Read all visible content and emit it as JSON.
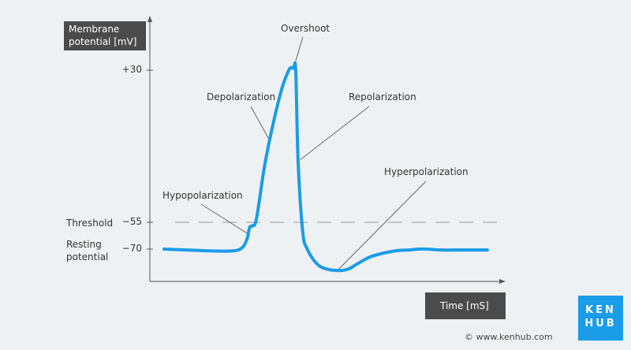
{
  "chart_data": {
    "type": "line",
    "ylabel_line1": "Membrane",
    "ylabel_line2": "potential [mV]",
    "xlabel": "Time [mS]",
    "y_ticks": [
      {
        "value": 30,
        "label": "+30"
      },
      {
        "value": -55,
        "label": "−55"
      },
      {
        "value": -70,
        "label": "−70"
      }
    ],
    "threshold_label": "Threshold",
    "resting_label_line1": "Resting",
    "resting_label_line2": "potential",
    "threshold_value": -55,
    "series": [
      {
        "color": "#1a9ce8",
        "x": [
          0,
          0.5,
          1,
          1.5,
          1.7,
          1.8,
          1.85,
          1.9,
          2.0,
          2.2,
          2.5,
          2.7,
          2.8,
          2.85,
          2.9,
          3.0,
          3.1,
          3.3,
          3.5,
          3.8,
          4.0,
          4.2,
          4.5,
          5.0,
          5.3,
          5.5,
          5.7,
          6.0,
          6.5,
          7.0
        ],
        "y": [
          -70,
          -70.5,
          -71,
          -71,
          -69,
          -64,
          -58,
          -57,
          -53,
          -20,
          15,
          30,
          31,
          30,
          -20,
          -60,
          -70,
          -78,
          -81,
          -82,
          -81,
          -78,
          -74,
          -71,
          -70.5,
          -70,
          -70,
          -70.5,
          -70.5,
          -70.5
        ]
      }
    ],
    "annotations": [
      {
        "text": "Overshoot",
        "x": 2.8,
        "y": 31
      },
      {
        "text": "Depolarization",
        "x": 2.3,
        "y": -10
      },
      {
        "text": "Repolarization",
        "x": 2.95,
        "y": -20
      },
      {
        "text": "Hypopolarization",
        "x": 1.85,
        "y": -62
      },
      {
        "text": "Hyperpolarization",
        "x": 3.75,
        "y": -82
      }
    ],
    "xlim": [
      0,
      7
    ],
    "ylim": [
      -90,
      60
    ],
    "grid": false
  },
  "brand": {
    "logo_line1": "KEN",
    "logo_line2": "HUB",
    "copyright": "© www.kenhub.com",
    "color": "#1a9ce8"
  }
}
